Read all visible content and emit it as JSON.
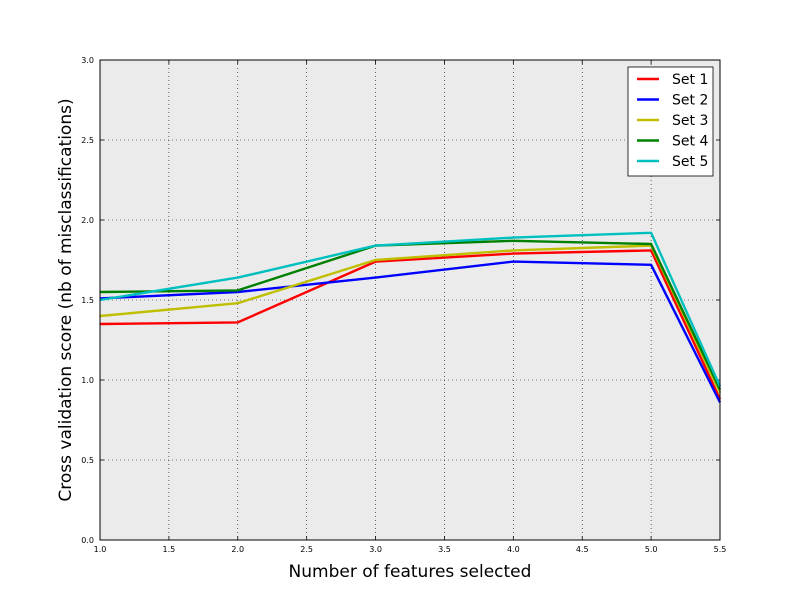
{
  "chart_data": {
    "type": "line",
    "title": "",
    "xlabel": "Number of features selected",
    "ylabel": "Cross validation score (nb of misclassifications)",
    "xlim": [
      1.0,
      5.5
    ],
    "ylim": [
      0.0,
      3.0
    ],
    "xticks": [
      "1.0",
      "1.5",
      "2.0",
      "2.5",
      "3.0",
      "3.5",
      "4.0",
      "4.5",
      "5.0",
      "5.5"
    ],
    "yticks": [
      "0.0",
      "0.5",
      "1.0",
      "1.5",
      "2.0",
      "2.5",
      "3.0"
    ],
    "grid": true,
    "legend_position": "top-right",
    "x": [
      1,
      2,
      3,
      4,
      5,
      5.5
    ],
    "series": [
      {
        "name": "Set 1",
        "color": "#ff0000",
        "values": [
          1.35,
          1.36,
          1.74,
          1.79,
          1.81,
          0.88
        ]
      },
      {
        "name": "Set 2",
        "color": "#0000ff",
        "values": [
          1.51,
          1.55,
          1.64,
          1.74,
          1.72,
          0.86
        ]
      },
      {
        "name": "Set 3",
        "color": "#bfbf00",
        "values": [
          1.4,
          1.48,
          1.75,
          1.81,
          1.84,
          0.92
        ]
      },
      {
        "name": "Set 4",
        "color": "#008000",
        "values": [
          1.55,
          1.56,
          1.84,
          1.87,
          1.85,
          0.94
        ]
      },
      {
        "name": "Set 5",
        "color": "#00bfbf",
        "values": [
          1.5,
          1.64,
          1.84,
          1.89,
          1.92,
          0.96
        ]
      }
    ]
  }
}
